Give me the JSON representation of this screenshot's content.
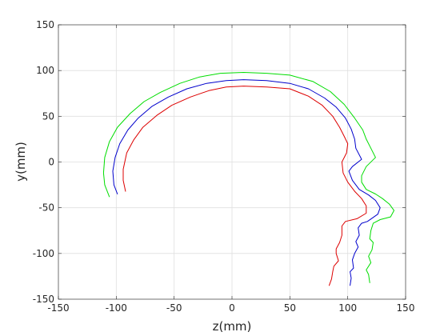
{
  "chart_data": {
    "type": "line",
    "title": "",
    "xlabel": "z(mm)",
    "ylabel": "y(mm)",
    "xlim": [
      -150,
      150
    ],
    "ylim": [
      -150,
      150
    ],
    "xticks": [
      -150,
      -100,
      -50,
      0,
      50,
      100,
      150
    ],
    "yticks": [
      -150,
      -100,
      -50,
      0,
      50,
      100,
      150
    ],
    "xtick_labels": [
      "-150",
      "-100",
      "-50",
      "0",
      "50",
      "100",
      "150"
    ],
    "ytick_labels": [
      "-150",
      "-100",
      "-50",
      "0",
      "50",
      "100",
      "150"
    ],
    "grid": true,
    "legend": "none",
    "series": [
      {
        "color": "#00dd00",
        "points": [
          [
            -106,
            -38
          ],
          [
            -110,
            -25
          ],
          [
            -111,
            -12
          ],
          [
            -110,
            5
          ],
          [
            -106,
            22
          ],
          [
            -99,
            38
          ],
          [
            -88,
            53
          ],
          [
            -76,
            66
          ],
          [
            -62,
            76
          ],
          [
            -45,
            86
          ],
          [
            -28,
            93
          ],
          [
            -10,
            97
          ],
          [
            10,
            98
          ],
          [
            30,
            97
          ],
          [
            50,
            95
          ],
          [
            70,
            88
          ],
          [
            85,
            77
          ],
          [
            97,
            63
          ],
          [
            106,
            48
          ],
          [
            113,
            35
          ],
          [
            116,
            25
          ],
          [
            120,
            15
          ],
          [
            124,
            5
          ],
          [
            116,
            -5
          ],
          [
            112,
            -15
          ],
          [
            112,
            -22
          ],
          [
            116,
            -30
          ],
          [
            124,
            -35
          ],
          [
            130,
            -40
          ],
          [
            136,
            -46
          ],
          [
            140,
            -53
          ],
          [
            137,
            -60
          ],
          [
            128,
            -63
          ],
          [
            122,
            -67
          ],
          [
            120,
            -75
          ],
          [
            119,
            -84
          ],
          [
            122,
            -88
          ],
          [
            121,
            -96
          ],
          [
            118,
            -103
          ],
          [
            120,
            -110
          ],
          [
            116,
            -118
          ],
          [
            118,
            -123
          ],
          [
            119,
            -132
          ]
        ]
      },
      {
        "color": "#0000cc",
        "points": [
          [
            -99,
            -35
          ],
          [
            -102,
            -25
          ],
          [
            -103,
            -10
          ],
          [
            -101,
            5
          ],
          [
            -97,
            20
          ],
          [
            -90,
            35
          ],
          [
            -81,
            48
          ],
          [
            -69,
            61
          ],
          [
            -55,
            71
          ],
          [
            -39,
            80
          ],
          [
            -22,
            86
          ],
          [
            -5,
            89
          ],
          [
            10,
            90
          ],
          [
            30,
            89
          ],
          [
            50,
            86
          ],
          [
            66,
            80
          ],
          [
            80,
            70
          ],
          [
            90,
            60
          ],
          [
            98,
            48
          ],
          [
            103,
            36
          ],
          [
            106,
            25
          ],
          [
            107,
            15
          ],
          [
            112,
            3
          ],
          [
            104,
            -5
          ],
          [
            101,
            -10
          ],
          [
            104,
            -20
          ],
          [
            110,
            -30
          ],
          [
            118,
            -36
          ],
          [
            124,
            -42
          ],
          [
            128,
            -50
          ],
          [
            126,
            -57
          ],
          [
            117,
            -65
          ],
          [
            112,
            -67
          ],
          [
            109,
            -72
          ],
          [
            110,
            -80
          ],
          [
            107,
            -87
          ],
          [
            109,
            -93
          ],
          [
            106,
            -100
          ],
          [
            104,
            -107
          ],
          [
            105,
            -116
          ],
          [
            102,
            -120
          ],
          [
            103,
            -127
          ],
          [
            102,
            -135
          ]
        ]
      },
      {
        "color": "#dd0000",
        "points": [
          [
            -92,
            -32
          ],
          [
            -94,
            -20
          ],
          [
            -94,
            -8
          ],
          [
            -91,
            10
          ],
          [
            -85,
            24
          ],
          [
            -77,
            38
          ],
          [
            -65,
            51
          ],
          [
            -52,
            62
          ],
          [
            -36,
            71
          ],
          [
            -20,
            78
          ],
          [
            -5,
            82
          ],
          [
            10,
            83
          ],
          [
            30,
            82
          ],
          [
            50,
            80
          ],
          [
            66,
            72
          ],
          [
            78,
            62
          ],
          [
            87,
            50
          ],
          [
            93,
            38
          ],
          [
            97,
            28
          ],
          [
            100,
            20
          ],
          [
            99,
            10
          ],
          [
            95,
            0
          ],
          [
            96,
            -12
          ],
          [
            100,
            -22
          ],
          [
            106,
            -32
          ],
          [
            112,
            -40
          ],
          [
            116,
            -48
          ],
          [
            116,
            -56
          ],
          [
            108,
            -62
          ],
          [
            98,
            -65
          ],
          [
            95,
            -70
          ],
          [
            95,
            -80
          ],
          [
            93,
            -88
          ],
          [
            90,
            -95
          ],
          [
            90,
            -100
          ],
          [
            92,
            -108
          ],
          [
            88,
            -114
          ],
          [
            87,
            -120
          ],
          [
            86,
            -128
          ],
          [
            84,
            -135
          ]
        ]
      }
    ]
  }
}
